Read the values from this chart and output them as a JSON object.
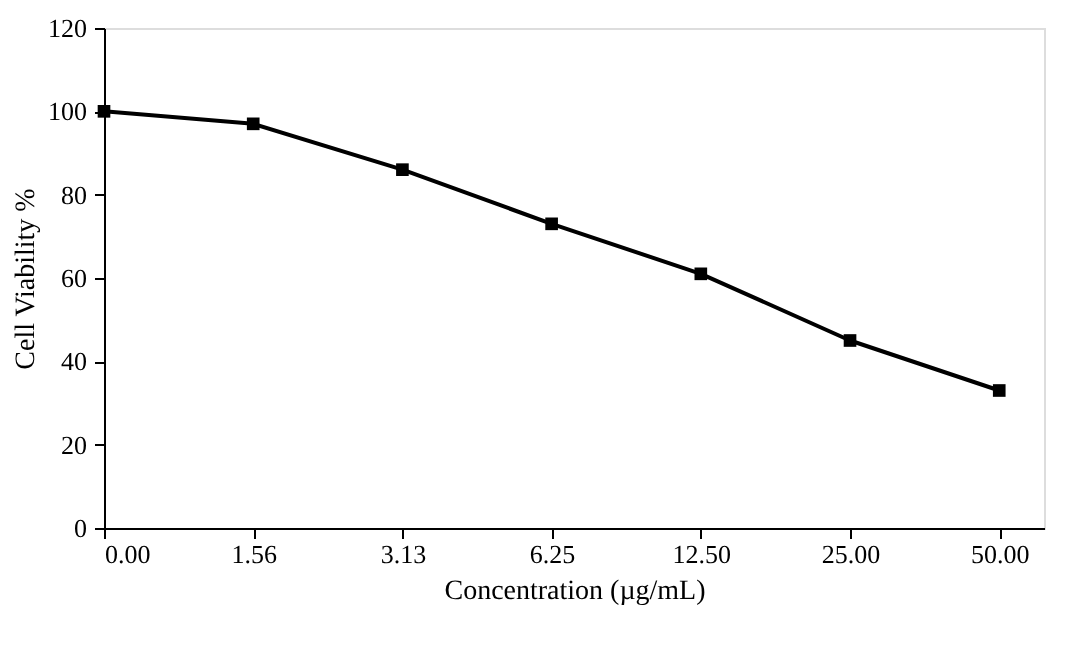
{
  "chart_data": {
    "type": "line",
    "xlabel": "Concentration (µg/mL)",
    "ylabel": "Cell Viability %",
    "categories": [
      "0.00",
      "1.56",
      "3.13",
      "6.25",
      "12.50",
      "25.00",
      "50.00"
    ],
    "series": [
      {
        "color": "#000000",
        "values": [
          100,
          97,
          86,
          73,
          61,
          45,
          33
        ]
      }
    ],
    "ylim": [
      0,
      120
    ],
    "yticks": [
      0,
      20,
      40,
      60,
      80,
      100,
      120
    ],
    "grid": false,
    "marker": "square",
    "line_style": "solid"
  }
}
